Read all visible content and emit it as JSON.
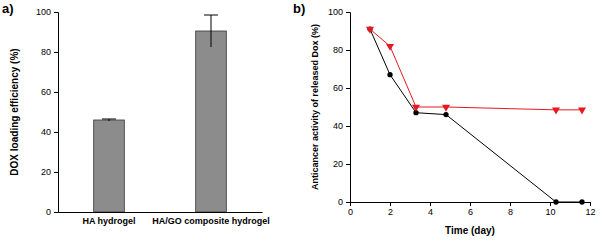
{
  "chart_data": [
    {
      "type": "bar",
      "title": "a)",
      "ylabel": "DOX loading efficiency (%)",
      "categories": [
        "HA hydrogel",
        "HA/GO composite hydrogel"
      ],
      "values": [
        46,
        90.5
      ],
      "errors": [
        0.5,
        8
      ],
      "color": "#8c8c8c",
      "ylim": [
        0,
        100
      ],
      "yticks": [
        0,
        20,
        40,
        60,
        80,
        100
      ]
    },
    {
      "type": "line",
      "title": "b)",
      "xlabel": "Time (day)",
      "ylabel": "Anticancer activity of released Dox (%)",
      "x": [
        1,
        2,
        3.3,
        4.8,
        10.3,
        11.6
      ],
      "xlim": [
        0,
        12
      ],
      "xticks": [
        0,
        2,
        4,
        6,
        8,
        10,
        12
      ],
      "ylim": [
        0,
        100
      ],
      "yticks": [
        0,
        20,
        40,
        60,
        80,
        100
      ],
      "series": [
        {
          "color": "#000000",
          "marker": "circle",
          "values": [
            91,
            67,
            47,
            46,
            0,
            0
          ]
        },
        {
          "color": "#e8191e",
          "marker": "triangle-down",
          "values": [
            91,
            82,
            50,
            50,
            48.5,
            48.5
          ]
        }
      ]
    }
  ]
}
